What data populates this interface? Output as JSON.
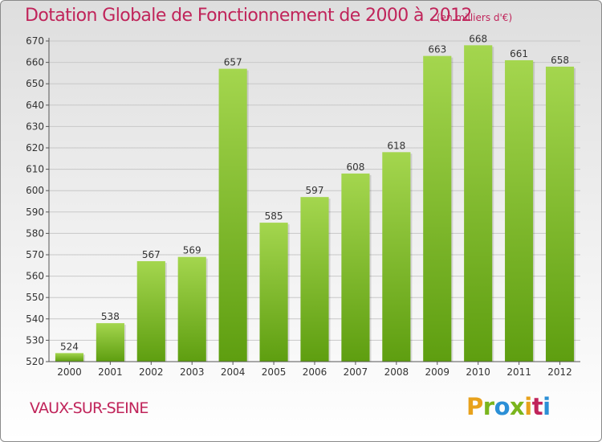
{
  "header": {
    "title": "Dotation Globale de Fonctionnement de 2000 à 2012",
    "subtitle": "(en milliers d'€)"
  },
  "footer": {
    "commune": "VAUX-SUR-SEINE",
    "logo": [
      "P",
      "r",
      "o",
      "x",
      "i",
      "t",
      "i"
    ],
    "logo_colors": [
      "#e8a21c",
      "#7ab51d",
      "#2b8fd6",
      "#7ab51d",
      "#e8a21c",
      "#c0245a",
      "#2b8fd6"
    ]
  },
  "colors": {
    "bar_light": "#a4d64e",
    "bar_dark": "#5e9e10",
    "grid": "#c8c8c8",
    "title": "#c0245a"
  },
  "chart_data": {
    "type": "bar",
    "categories": [
      "2000",
      "2001",
      "2002",
      "2003",
      "2004",
      "2005",
      "2006",
      "2007",
      "2008",
      "2009",
      "2010",
      "2011",
      "2012"
    ],
    "values": [
      524,
      538,
      567,
      569,
      657,
      585,
      597,
      608,
      618,
      663,
      668,
      661,
      658
    ],
    "ylim": [
      520,
      670
    ],
    "yticks": [
      520,
      530,
      540,
      550,
      560,
      570,
      580,
      590,
      600,
      610,
      620,
      630,
      640,
      650,
      660,
      670
    ],
    "grid": true,
    "legend": "none"
  }
}
